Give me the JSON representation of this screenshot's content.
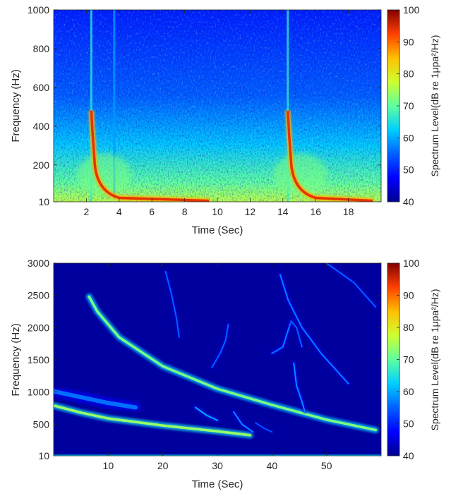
{
  "chart_data": [
    {
      "type": "heatmap",
      "title": "",
      "xlabel": "Time (Sec)",
      "ylabel": "Frequency (Hz)",
      "xlim": [
        0,
        20
      ],
      "ylim": [
        10,
        1000
      ],
      "x_ticks": [
        2,
        4,
        6,
        8,
        10,
        12,
        14,
        16,
        18
      ],
      "x_tick_labels": [
        "2",
        "4",
        "6",
        "8",
        "10",
        "12",
        "14",
        "16",
        "18"
      ],
      "y_ticks": [
        10,
        200,
        400,
        600,
        800,
        1000
      ],
      "y_tick_labels": [
        "10",
        "200",
        "400",
        "600",
        "800",
        "1000"
      ],
      "colorbar": {
        "label": "Spectrum Level(dB re 1μpa²/Hz)",
        "range": [
          40,
          100
        ],
        "ticks": [
          40,
          50,
          60,
          70,
          80,
          90,
          100
        ],
        "tick_labels": [
          "40",
          "50",
          "60",
          "70",
          "80",
          "90",
          "100"
        ],
        "colormap": "jet"
      },
      "background_level_low_freq": 70,
      "background_level_high_freq": 52,
      "events": [
        {
          "kind": "vertical-transient",
          "time": 2.3,
          "f_from": 10,
          "f_to": 1000,
          "level": 66
        },
        {
          "kind": "vertical-transient",
          "time": 3.7,
          "f_from": 30,
          "f_to": 1000,
          "level": 59
        },
        {
          "kind": "downsweep",
          "start_time": 2.3,
          "start_freq": 480,
          "end_time": 9.5,
          "end_freq": 15,
          "level": 94
        },
        {
          "kind": "vertical-transient",
          "time": 14.3,
          "f_from": 10,
          "f_to": 1000,
          "level": 66
        },
        {
          "kind": "downsweep",
          "start_time": 14.3,
          "start_freq": 480,
          "end_time": 19.5,
          "end_freq": 15,
          "level": 94
        }
      ]
    },
    {
      "type": "heatmap",
      "title": "",
      "xlabel": "Time (Sec)",
      "ylabel": "Frequency (Hz)",
      "xlim": [
        0,
        60
      ],
      "ylim": [
        10,
        3000
      ],
      "x_ticks": [
        10,
        20,
        30,
        40,
        50
      ],
      "x_tick_labels": [
        "10",
        "20",
        "30",
        "40",
        "50"
      ],
      "y_ticks": [
        10,
        500,
        1000,
        1500,
        2000,
        2500,
        3000
      ],
      "y_tick_labels": [
        "10",
        "500",
        "1000",
        "1500",
        "2000",
        "2500",
        "3000"
      ],
      "colorbar": {
        "label": "Spectrum Level(dB re 1μpa²/Hz)",
        "range": [
          40,
          100
        ],
        "ticks": [
          40,
          50,
          60,
          70,
          80,
          90,
          100
        ],
        "tick_labels": [
          "40",
          "50",
          "60",
          "70",
          "80",
          "90",
          "100"
        ],
        "colormap": "jet"
      },
      "background_level": 41,
      "tracks": [
        {
          "name": "upper-sweep",
          "points": [
            [
              6.5,
              2480
            ],
            [
              8,
              2250
            ],
            [
              12,
              1850
            ],
            [
              20,
              1400
            ],
            [
              30,
              1050
            ],
            [
              40,
              800
            ],
            [
              50,
              570
            ],
            [
              59,
              410
            ]
          ],
          "level": 72
        },
        {
          "name": "lower-sweep",
          "points": [
            [
              0,
              790
            ],
            [
              5,
              680
            ],
            [
              10,
              590
            ],
            [
              20,
              480
            ],
            [
              30,
              390
            ],
            [
              36,
              330
            ]
          ],
          "level": 74
        },
        {
          "name": "broad-band",
          "points": [
            [
              0,
              1010
            ],
            [
              5,
              920
            ],
            [
              10,
              830
            ],
            [
              15,
              760
            ]
          ],
          "level": 56
        },
        {
          "name": "upper-right-sweep",
          "points": [
            [
              50,
              3000
            ],
            [
              55,
              2700
            ],
            [
              59,
              2320
            ]
          ],
          "level": 55
        },
        {
          "name": "arc-42",
          "points": [
            [
              41.5,
              2820
            ],
            [
              43,
              2420
            ],
            [
              45.5,
              2000
            ],
            [
              49,
              1600
            ],
            [
              54,
              1130
            ]
          ],
          "level": 57
        },
        {
          "name": "arc-21",
          "points": [
            [
              20.5,
              2870
            ],
            [
              21.5,
              2550
            ],
            [
              22.5,
              2150
            ],
            [
              23,
              1850
            ]
          ],
          "level": 55
        },
        {
          "name": "arc-31",
          "points": [
            [
              29,
              1380
            ],
            [
              30.5,
              1600
            ],
            [
              31.5,
              1800
            ],
            [
              32,
              2050
            ]
          ],
          "level": 55
        },
        {
          "name": "v-shape-left",
          "points": [
            [
              40,
              1600
            ],
            [
              42,
              1700
            ],
            [
              43.5,
              2100
            ]
          ],
          "level": 57
        },
        {
          "name": "v-shape-right",
          "points": [
            [
              43.5,
              2100
            ],
            [
              44.5,
              2000
            ],
            [
              45.5,
              1700
            ]
          ],
          "level": 55
        },
        {
          "name": "descending-43",
          "points": [
            [
              44,
              1450
            ],
            [
              44.5,
              1100
            ],
            [
              45.5,
              850
            ],
            [
              46,
              700
            ]
          ],
          "level": 58
        },
        {
          "name": "line-29",
          "points": [
            [
              26,
              760
            ],
            [
              28,
              640
            ],
            [
              30,
              560
            ]
          ],
          "level": 60
        },
        {
          "name": "line-34",
          "points": [
            [
              33,
              690
            ],
            [
              34.5,
              500
            ],
            [
              36.5,
              380
            ]
          ],
          "level": 58
        },
        {
          "name": "line-37",
          "points": [
            [
              37,
              520
            ],
            [
              38.5,
              440
            ],
            [
              40,
              380
            ]
          ],
          "level": 54
        },
        {
          "name": "bottom-band",
          "points": [
            [
              0,
              15
            ],
            [
              60,
              15
            ]
          ],
          "level": 62
        }
      ]
    }
  ]
}
